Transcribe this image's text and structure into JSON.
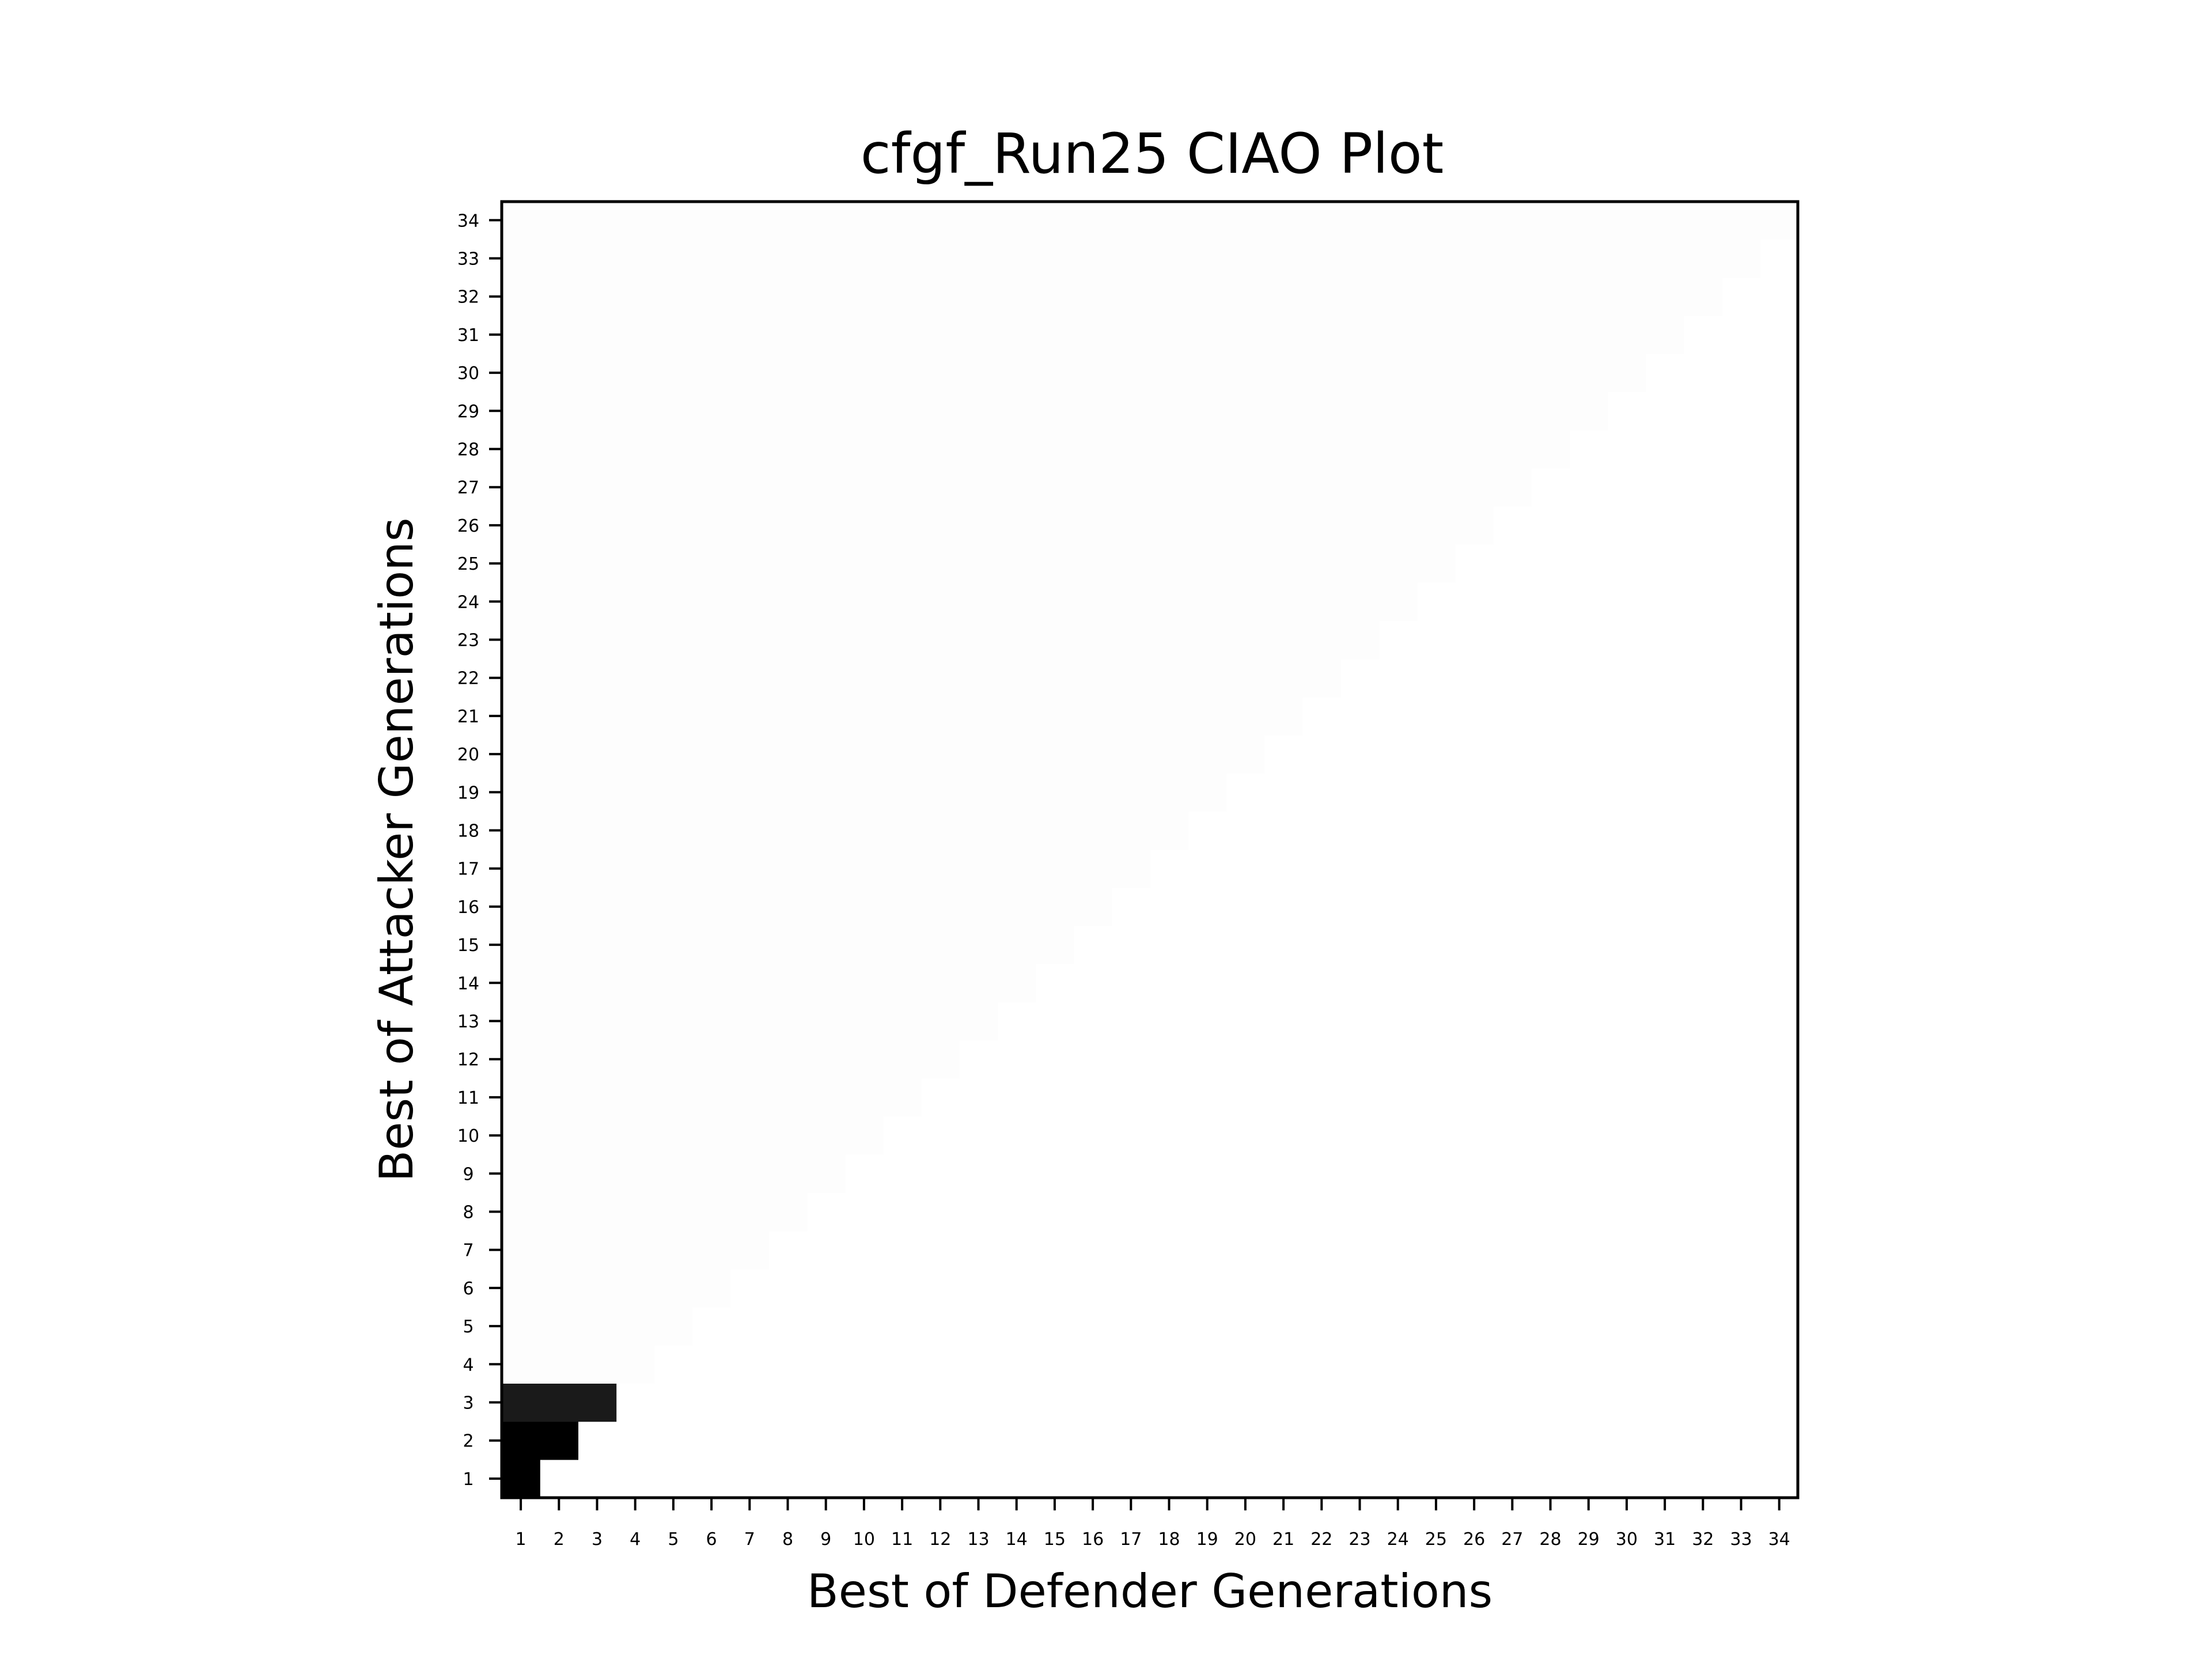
{
  "chart_data": {
    "type": "heatmap",
    "title": "cfgf_Run25 CIAO Plot",
    "xlabel": "Best of Defender Generations",
    "ylabel": "Best of Attacker Generations",
    "x_ticks": [
      "1",
      "2",
      "3",
      "4",
      "5",
      "6",
      "7",
      "8",
      "9",
      "10",
      "11",
      "12",
      "13",
      "14",
      "15",
      "16",
      "17",
      "18",
      "19",
      "20",
      "21",
      "22",
      "23",
      "24",
      "25",
      "26",
      "27",
      "28",
      "29",
      "30",
      "31",
      "32",
      "33",
      "34"
    ],
    "y_ticks": [
      "1",
      "2",
      "3",
      "4",
      "5",
      "6",
      "7",
      "8",
      "9",
      "10",
      "11",
      "12",
      "13",
      "14",
      "15",
      "16",
      "17",
      "18",
      "19",
      "20",
      "21",
      "22",
      "23",
      "24",
      "25",
      "26",
      "27",
      "28",
      "29",
      "30",
      "31",
      "32",
      "33",
      "34"
    ],
    "xlim": [
      1,
      34
    ],
    "ylim": [
      1,
      34
    ],
    "colormap": "gray_reversed",
    "grid": false,
    "fill_rule": "cells with defender generation <= attacker generation are filled; all other cells are white",
    "cells": [
      {
        "attacker": 1,
        "defender": 1,
        "color": "#000000"
      },
      {
        "attacker": 2,
        "defender": 1,
        "color": "#000000"
      },
      {
        "attacker": 2,
        "defender": 2,
        "color": "#000000"
      },
      {
        "attacker": 3,
        "defender": 1,
        "color": "#1a1a1a"
      },
      {
        "attacker": 3,
        "defender": 2,
        "color": "#1a1a1a"
      },
      {
        "attacker": 3,
        "defender": 3,
        "color": "#1a1a1a"
      }
    ],
    "default_filled_color": "#fdfdfd",
    "background_color": "#ffffff"
  }
}
